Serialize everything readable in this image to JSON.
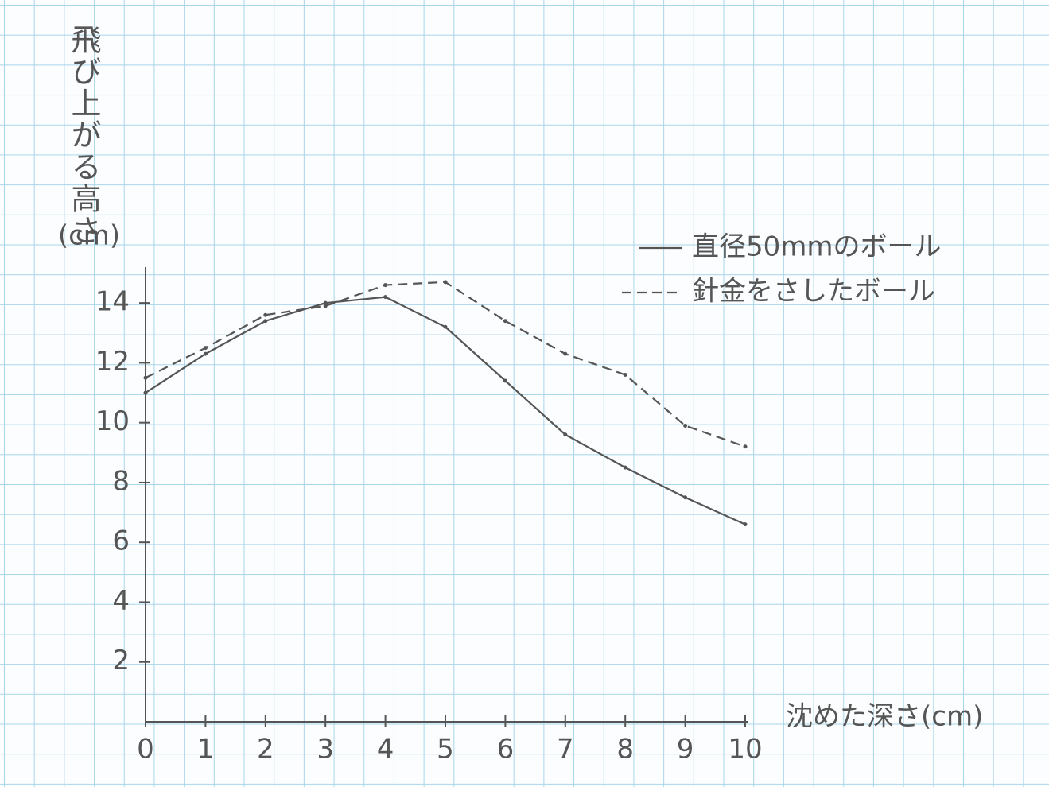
{
  "chart_data": {
    "type": "line",
    "y_label": "飛び上がる高さ",
    "y_unit": "(cm)",
    "x_label": "沈めた深さ(cm)",
    "x": [
      0,
      1,
      2,
      3,
      4,
      5,
      6,
      7,
      8,
      9,
      10
    ],
    "series": [
      {
        "name": "直径50mmのボール",
        "color": "#555555",
        "dashed": false,
        "values": [
          11.0,
          12.3,
          13.4,
          14.0,
          14.2,
          13.2,
          11.4,
          9.6,
          8.5,
          7.5,
          6.6
        ]
      },
      {
        "name": "針金をさしたボール",
        "color": "#555555",
        "dashed": true,
        "values": [
          11.5,
          12.5,
          13.6,
          13.9,
          14.6,
          14.7,
          13.4,
          12.3,
          11.6,
          9.9,
          9.2
        ]
      }
    ],
    "xlim": [
      0,
      10
    ],
    "ylim": [
      0,
      15.2
    ],
    "xticks": [
      0,
      1,
      2,
      3,
      4,
      5,
      6,
      7,
      8,
      9,
      10
    ],
    "yticks": [
      2,
      4,
      6,
      8,
      10,
      12,
      14
    ]
  }
}
